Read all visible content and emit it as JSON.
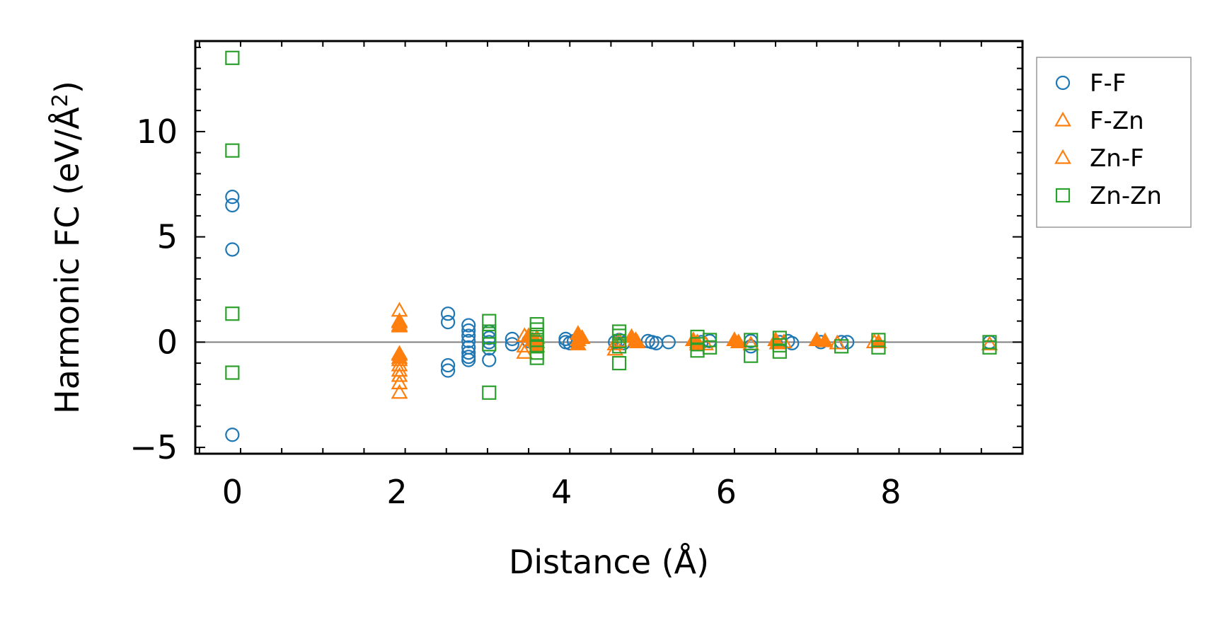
{
  "chart_data": {
    "type": "scatter",
    "title": "",
    "xlabel": "Distance (Å)",
    "ylabel_main": "Harmonic FC (eV/Å",
    "ylabel_sup": "2",
    "ylabel_close": ")",
    "xlim": [
      -0.45,
      9.6
    ],
    "ylim": [
      -5.3,
      14.3
    ],
    "xticks": [
      0,
      2,
      4,
      6,
      8
    ],
    "xtick_labels": [
      "0",
      "2",
      "4",
      "6",
      "8"
    ],
    "yticks": [
      -5,
      0,
      5,
      10
    ],
    "ytick_labels": [
      "−5",
      "0",
      "5",
      "10"
    ],
    "reference_line_y": 0,
    "legend_position": "outside-right-top",
    "colors": {
      "F-F": "#1f77b4",
      "F-Zn": "#ff7f0e",
      "Zn-F": "#ff7f0e",
      "Zn-Zn": "#2ca02c",
      "zero_line": "#808080"
    },
    "series": [
      {
        "name": "F-F",
        "marker": "circle",
        "color": "#1f77b4",
        "points": [
          [
            0,
            6.9
          ],
          [
            0,
            6.5
          ],
          [
            0,
            4.4
          ],
          [
            0,
            -4.4
          ],
          [
            2.62,
            1.35
          ],
          [
            2.62,
            0.95
          ],
          [
            2.62,
            -1.1
          ],
          [
            2.62,
            -1.35
          ],
          [
            2.87,
            0.8
          ],
          [
            2.87,
            0.55
          ],
          [
            2.87,
            0.3
          ],
          [
            2.87,
            0.05
          ],
          [
            2.87,
            -0.25
          ],
          [
            2.87,
            -0.5
          ],
          [
            2.87,
            -0.7
          ],
          [
            2.87,
            -0.85
          ],
          [
            3.12,
            0.5
          ],
          [
            3.12,
            0.2
          ],
          [
            3.12,
            0
          ],
          [
            3.12,
            -0.3
          ],
          [
            3.12,
            -0.85
          ],
          [
            3.4,
            0.15
          ],
          [
            3.4,
            -0.1
          ],
          [
            3.6,
            0.05
          ],
          [
            3.7,
            0
          ],
          [
            4.05,
            0.15
          ],
          [
            4.05,
            0
          ],
          [
            4.1,
            -0.05
          ],
          [
            4.15,
            0.05
          ],
          [
            4.65,
            0
          ],
          [
            4.7,
            0.1
          ],
          [
            4.75,
            -0.05
          ],
          [
            5.05,
            0.05
          ],
          [
            5.1,
            0
          ],
          [
            5.15,
            -0.05
          ],
          [
            5.3,
            0
          ],
          [
            5.7,
            0
          ],
          [
            5.8,
            0.05
          ],
          [
            6.3,
            0.05
          ],
          [
            6.3,
            -0.2
          ],
          [
            6.65,
            0
          ],
          [
            6.75,
            0.05
          ],
          [
            6.8,
            -0.05
          ],
          [
            7.15,
            0
          ],
          [
            7.4,
            0
          ],
          [
            7.47,
            0
          ],
          [
            9.2,
            0
          ]
        ]
      },
      {
        "name": "F-Zn",
        "marker": "triangle",
        "color": "#ff7f0e",
        "filled": false,
        "points": [
          [
            2.03,
            1.5
          ],
          [
            2.03,
            1.0
          ],
          [
            2.03,
            0.8
          ],
          [
            2.03,
            -0.6
          ],
          [
            2.03,
            -0.85
          ],
          [
            2.03,
            -1.1
          ],
          [
            2.03,
            -1.35
          ],
          [
            2.03,
            -1.6
          ],
          [
            2.03,
            -1.95
          ],
          [
            2.03,
            -2.4
          ],
          [
            3.55,
            0.3
          ],
          [
            3.55,
            -0.2
          ],
          [
            3.55,
            -0.5
          ],
          [
            3.7,
            0.2
          ],
          [
            4.65,
            -0.35
          ],
          [
            4.65,
            -0.1
          ],
          [
            4.7,
            0.05
          ],
          [
            5.65,
            0
          ],
          [
            5.75,
            -0.1
          ],
          [
            6.3,
            -0.1
          ],
          [
            6.7,
            0
          ],
          [
            7.35,
            -0.05
          ],
          [
            7.8,
            0
          ],
          [
            9.2,
            -0.1
          ]
        ]
      },
      {
        "name": "Zn-F",
        "marker": "triangle",
        "color": "#ff7f0e",
        "filled": true,
        "points": [
          [
            2.03,
            -0.55
          ],
          [
            2.03,
            -0.75
          ],
          [
            2.03,
            0.75
          ],
          [
            2.03,
            0.95
          ],
          [
            3.6,
            0.3
          ],
          [
            3.65,
            0.1
          ],
          [
            3.7,
            0
          ],
          [
            3.7,
            -0.2
          ],
          [
            4.2,
            0.4
          ],
          [
            4.2,
            0.1
          ],
          [
            4.2,
            -0.1
          ],
          [
            4.25,
            0.2
          ],
          [
            4.85,
            0.25
          ],
          [
            4.9,
            0.1
          ],
          [
            4.92,
            0
          ],
          [
            5.6,
            0.1
          ],
          [
            5.65,
            -0.1
          ],
          [
            6.1,
            0.1
          ],
          [
            6.15,
            0
          ],
          [
            6.6,
            0.1
          ],
          [
            6.62,
            -0.05
          ],
          [
            7.1,
            0.1
          ],
          [
            7.2,
            0.05
          ],
          [
            7.85,
            0
          ]
        ]
      },
      {
        "name": "Zn-Zn",
        "marker": "square",
        "color": "#2ca02c",
        "points": [
          [
            0,
            13.5
          ],
          [
            0,
            9.1
          ],
          [
            0,
            1.35
          ],
          [
            0,
            -1.45
          ],
          [
            3.12,
            1.0
          ],
          [
            3.12,
            0.5
          ],
          [
            3.12,
            0.25
          ],
          [
            3.12,
            -0.1
          ],
          [
            3.12,
            -2.4
          ],
          [
            3.7,
            0.85
          ],
          [
            3.7,
            0.6
          ],
          [
            3.7,
            0.35
          ],
          [
            3.7,
            0.1
          ],
          [
            3.7,
            -0.2
          ],
          [
            3.7,
            -0.5
          ],
          [
            3.7,
            -0.75
          ],
          [
            4.7,
            0.5
          ],
          [
            4.7,
            0.3
          ],
          [
            4.7,
            0.05
          ],
          [
            4.7,
            -0.2
          ],
          [
            4.7,
            -1.0
          ],
          [
            5.65,
            0.25
          ],
          [
            5.65,
            -0.1
          ],
          [
            5.65,
            -0.4
          ],
          [
            5.8,
            0.1
          ],
          [
            5.8,
            -0.25
          ],
          [
            6.3,
            0.1
          ],
          [
            6.3,
            -0.65
          ],
          [
            6.65,
            0.2
          ],
          [
            6.65,
            -0.15
          ],
          [
            6.65,
            -0.45
          ],
          [
            7.4,
            -0.2
          ],
          [
            7.85,
            0.1
          ],
          [
            7.85,
            -0.25
          ],
          [
            9.2,
            0
          ],
          [
            9.2,
            -0.25
          ]
        ]
      }
    ]
  }
}
